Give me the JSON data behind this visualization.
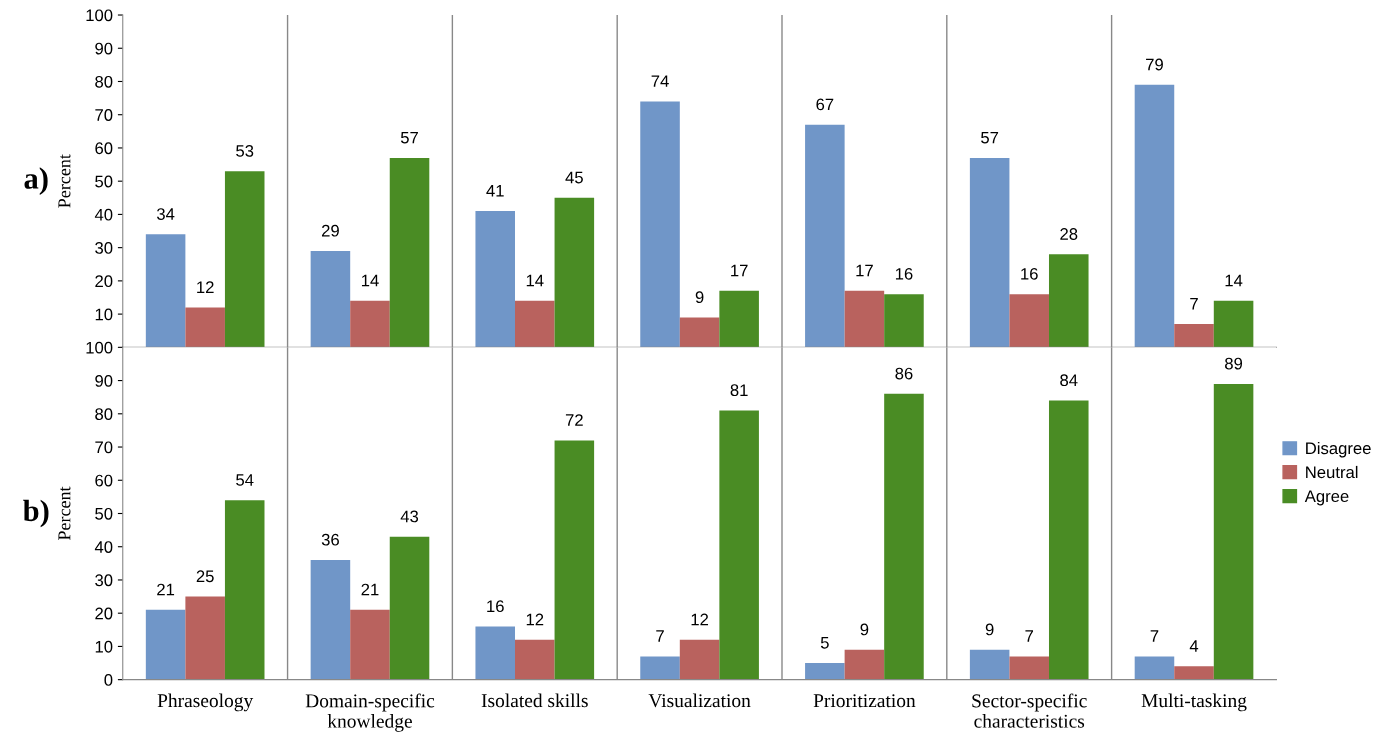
{
  "chart_data": [
    {
      "type": "bar",
      "ylabel": "Percent",
      "annotations": [
        "a)"
      ],
      "categories": [
        null,
        null,
        null,
        null,
        null,
        null,
        null
      ],
      "series": [
        {
          "color": "#7096c8",
          "values": [
            34,
            29,
            41,
            74,
            67,
            57,
            79
          ]
        },
        {
          "color": "#b9625e",
          "values": [
            12,
            14,
            14,
            9,
            17,
            16,
            7
          ]
        },
        {
          "color": "#4a8c24",
          "values": [
            53,
            57,
            45,
            17,
            16,
            28,
            14
          ]
        }
      ],
      "ylim": [
        0,
        100
      ],
      "yticks": [
        10,
        20,
        30,
        40,
        50,
        60,
        70,
        80,
        90,
        100
      ],
      "grid": "x",
      "data_labels": true,
      "tick_labels": "y",
      "legend": false
    },
    {
      "type": "bar",
      "ylabel": "Percent",
      "annotations": [
        "b)"
      ],
      "categories": [
        "Phraseology",
        "Domain-specific knowledge",
        "Isolated skills",
        "Visualization",
        "Prioritization",
        "Sector-specific characteristics",
        "Multi-tasking"
      ],
      "series": [
        {
          "name": "Disagree",
          "color": "#7096c8",
          "values": [
            21,
            36,
            16,
            7,
            5,
            9,
            7
          ]
        },
        {
          "name": "Neutral",
          "color": "#b9625e",
          "values": [
            25,
            21,
            12,
            12,
            9,
            7,
            4
          ]
        },
        {
          "name": "Agree",
          "color": "#4a8c24",
          "values": [
            54,
            43,
            72,
            81,
            86,
            84,
            89
          ]
        }
      ],
      "ylim": [
        0,
        100
      ],
      "yticks": [
        0,
        10,
        20,
        30,
        40,
        50,
        60,
        70,
        80,
        90,
        100
      ],
      "grid": "x",
      "data_labels": true,
      "legend": "right"
    }
  ]
}
